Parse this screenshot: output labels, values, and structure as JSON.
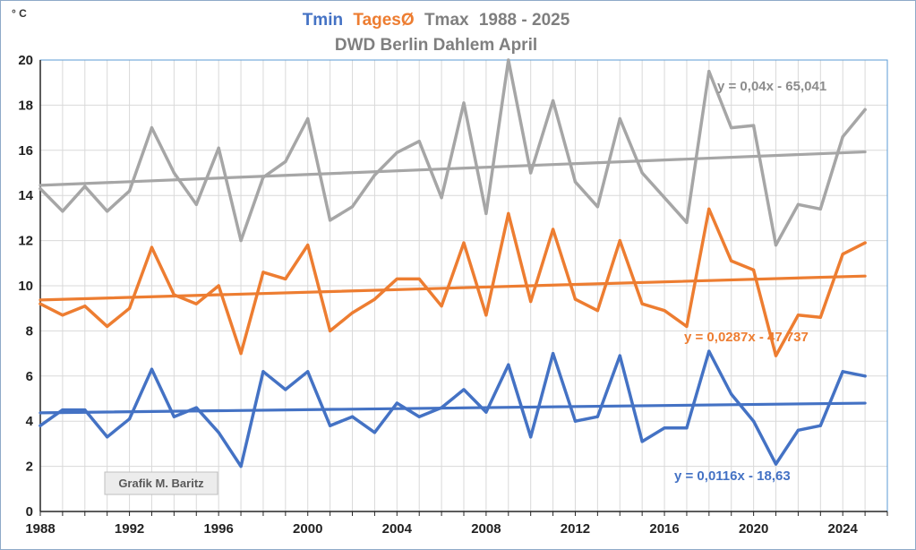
{
  "chart_data": {
    "type": "line",
    "title": {
      "tmin": "Tmin",
      "tages": "TagesØ",
      "tmax": "Tmax",
      "years": "1988 - 2025",
      "subtitle": "DWD Berlin Dahlem April"
    },
    "unit": "° C",
    "credit": "Grafik M. Baritz",
    "x": [
      1988,
      1989,
      1990,
      1991,
      1992,
      1993,
      1994,
      1995,
      1996,
      1997,
      1998,
      1999,
      2000,
      2001,
      2002,
      2003,
      2004,
      2005,
      2006,
      2007,
      2008,
      2009,
      2010,
      2011,
      2012,
      2013,
      2014,
      2015,
      2016,
      2017,
      2018,
      2019,
      2020,
      2021,
      2022,
      2023,
      2024,
      2025
    ],
    "xlim": [
      1988,
      2026
    ],
    "xticks": [
      "1988",
      "1992",
      "1996",
      "2000",
      "2004",
      "2008",
      "2012",
      "2016",
      "2020",
      "2024"
    ],
    "ylim": [
      0,
      20
    ],
    "yticks": [
      "0",
      "2",
      "4",
      "6",
      "8",
      "10",
      "12",
      "14",
      "16",
      "18",
      "20"
    ],
    "grid": true,
    "legend": "none",
    "series": [
      {
        "name": "Tmax",
        "color": "#a6a6a6",
        "values": [
          14.3,
          13.3,
          14.4,
          13.3,
          14.2,
          17.0,
          15.0,
          13.6,
          16.1,
          12.0,
          14.8,
          15.5,
          17.4,
          12.9,
          13.5,
          14.9,
          15.9,
          16.4,
          13.9,
          18.1,
          13.2,
          20.0,
          15.0,
          18.2,
          14.6,
          13.5,
          17.4,
          15.0,
          13.9,
          12.8,
          19.5,
          17.0,
          17.1,
          11.8,
          13.6,
          13.4,
          16.6,
          17.8
        ],
        "trend": {
          "label": "y = 0,04x - 65,041",
          "start": 14.45,
          "end": 15.93
        }
      },
      {
        "name": "TagesØ",
        "color": "#ed7d31",
        "values": [
          9.2,
          8.7,
          9.1,
          8.2,
          9.0,
          11.7,
          9.6,
          9.2,
          10.0,
          7.0,
          10.6,
          10.3,
          11.8,
          8.0,
          8.8,
          9.4,
          10.3,
          10.3,
          9.1,
          11.9,
          8.7,
          13.2,
          9.3,
          12.5,
          9.4,
          8.9,
          12.0,
          9.2,
          8.9,
          8.2,
          13.4,
          11.1,
          10.7,
          6.9,
          8.7,
          8.6,
          11.4,
          11.9
        ],
        "trend": {
          "label": "y = 0,0287x - 47,737",
          "start": 9.37,
          "end": 10.43
        }
      },
      {
        "name": "Tmin",
        "color": "#4472c4",
        "values": [
          3.8,
          4.5,
          4.5,
          3.3,
          4.1,
          6.3,
          4.2,
          4.6,
          3.5,
          2.0,
          6.2,
          5.4,
          6.2,
          3.8,
          4.2,
          3.5,
          4.8,
          4.2,
          4.6,
          5.4,
          4.4,
          6.5,
          3.3,
          7.0,
          4.0,
          4.2,
          6.9,
          3.1,
          3.7,
          3.7,
          7.1,
          5.2,
          4.0,
          2.1,
          3.6,
          3.8,
          6.2,
          6.0
        ],
        "trend": {
          "label": "y = 0,0116x - 18,63",
          "start": 4.37,
          "end": 4.8
        }
      }
    ]
  }
}
